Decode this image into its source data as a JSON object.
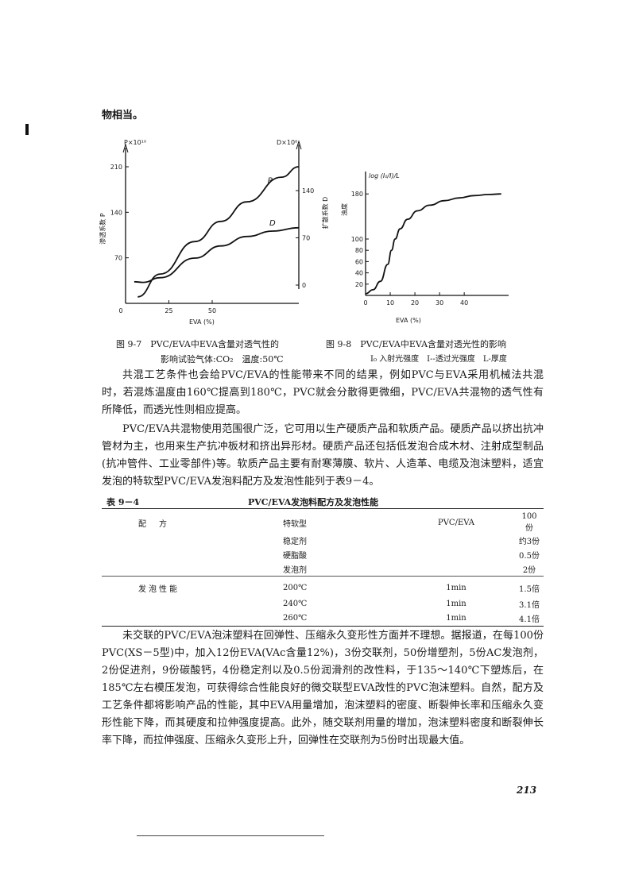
{
  "page": {
    "fragment": "物相当。",
    "page_number": "213"
  },
  "fig7": {
    "caption_line1": "图 9-7　PVC/EVA中EVA含量对透气性的",
    "caption_line2": "影响试验气体:CO₂　温度:50℃",
    "chart_data": {
      "type": "line",
      "xlabel": "EVA (%)",
      "x_ticks": [
        "0",
        "25",
        "50"
      ],
      "xlim": [
        0,
        100
      ],
      "y_left_label": "渗透系数 P",
      "y_left_unit": "P×10¹⁰",
      "y_left_ticks": [
        "210",
        "140",
        "70"
      ],
      "y_left_lim": [
        0,
        210
      ],
      "y_right_label": "扩散系数 D",
      "y_right_unit": "D×10⁸",
      "y_right_ticks": [
        "140",
        "70",
        "0"
      ],
      "y_right_lim": [
        0,
        140
      ],
      "series": [
        {
          "name": "P",
          "axis": "left",
          "x": [
            7,
            20,
            40,
            55,
            70,
            90,
            100
          ],
          "y": [
            10,
            45,
            95,
            126,
            156,
            194,
            210
          ]
        },
        {
          "name": "D",
          "axis": "right",
          "x": [
            5,
            10,
            20,
            40,
            55,
            70,
            85,
            100
          ],
          "y": [
            5,
            4,
            11,
            40,
            58,
            72,
            80,
            85
          ]
        }
      ]
    }
  },
  "fig8": {
    "caption_line1": "图 9-8　PVC/EVA中EVA含量对透光性的影响",
    "caption_line2": "I₀ 入射光强度　I--透过光强度　L-厚度",
    "chart_data": {
      "type": "line",
      "xlabel": "EVA (%)",
      "x_ticks": [
        "0",
        "10",
        "20",
        "30",
        "40"
      ],
      "xlim": [
        0,
        58
      ],
      "ylabel": "浊度",
      "y_unit": "log (I₀/I)/L",
      "y_ticks": [
        "180",
        "100",
        "80",
        "60",
        "40",
        "20"
      ],
      "ylim": [
        0,
        200
      ],
      "series": [
        {
          "name": "",
          "x": [
            0,
            3,
            6,
            9,
            10.5,
            12,
            14,
            17,
            21,
            26,
            32,
            38,
            44,
            50,
            55
          ],
          "y": [
            3,
            10,
            25,
            55,
            80,
            100,
            118,
            135,
            150,
            160,
            168,
            173,
            177,
            179,
            180
          ]
        }
      ]
    }
  },
  "body": {
    "p1": "共混工艺条件也会给PVC/EVA的性能带来不同的结果，例如PVC与EVA采用机械法共混时，若混炼温度由160℃提高到180℃，PVC就会分散得更微细，PVC/EVA共混物的透气性有所降低，而透光性则相应提高。",
    "p2": "PVC/EVA共混物使用范围很广泛，它可用以生产硬质产品和软质产品。硬质产品以挤出抗冲管材为主，也用来生产抗冲板材和挤出异形材。硬质产品还包括低发泡合成木材、注射成型制品(抗冲管件、工业零部件)等。软质产品主要有耐寒薄膜、软片、人造革、电缆及泡沫塑料，适宜发泡的特软型PVC/EVA发泡料配方及发泡性能列于表9－4。",
    "p3": "未交联的PVC/EVA泡沫塑料在回弹性、压缩永久变形性方面并不理想。据报道，在每100份PVC(XS－5型)中，加入12份EVA(VAc含量12%)，3份交联剂，50份增塑剂，5份AC发泡剂，2份促进剂，9份碳酸钙，4份稳定剂以及0.5份润滑剂的改性料，于135～140℃下塑炼后，在185℃左右模压发泡，可获得综合性能良好的微交联型EVA改性的PVC泡沫塑料。自然，配方及工艺条件都将影响产品的性能，其中EVA用量增加，泡沫塑料的密度、断裂伸长率和压缩永久变形性能下降，而其硬度和拉伸强度提高。此外，随交联剂用量的增加，泡沫塑料密度和断裂伸长率下降，而拉伸强度、压缩永久变形上升，回弹性在交联剂为5份时出现最大值。"
  },
  "table": {
    "label": "表 9－4",
    "title": "PVC/EVA发泡料配方及发泡性能",
    "rows": [
      [
        "配　方",
        "特软型",
        "PVC/EVA",
        "100份"
      ],
      [
        "",
        "稳定剂",
        "",
        "约3份"
      ],
      [
        "",
        "硬脂酸",
        "",
        "0.5份"
      ],
      [
        "",
        "发泡剂",
        "",
        "2份"
      ],
      [
        "发泡性能",
        "200℃",
        "1min",
        "1.5倍"
      ],
      [
        "",
        "240℃",
        "1min",
        "3.1倍"
      ],
      [
        "",
        "260℃",
        "1min",
        "4.1倍"
      ]
    ]
  }
}
